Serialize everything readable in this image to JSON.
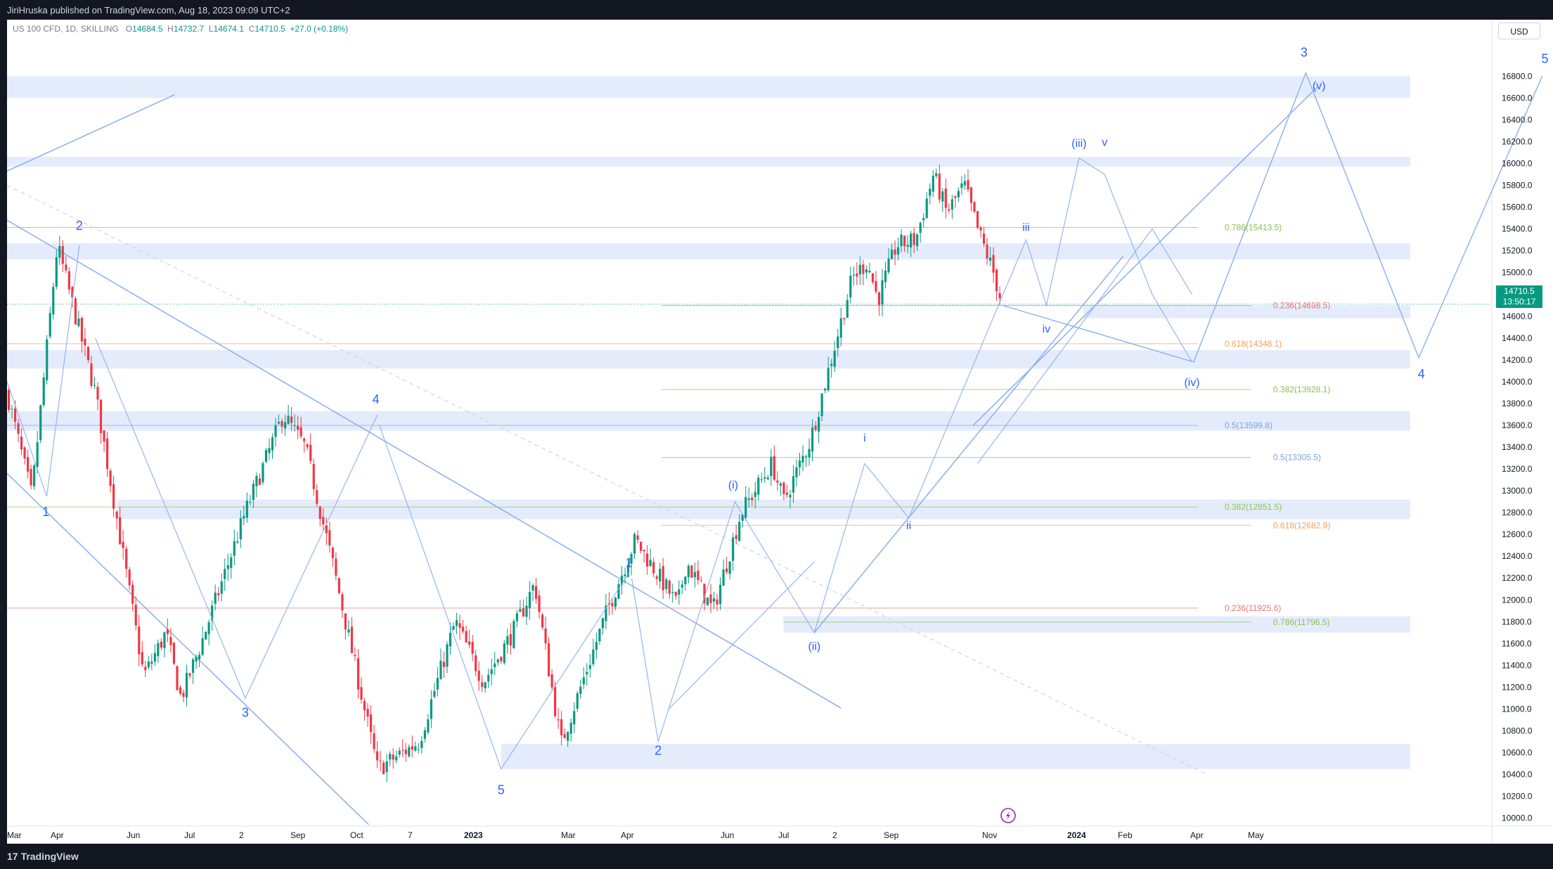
{
  "header": {
    "published": "JiriHruska published on TradingView.com, Aug 18, 2023 09:09 UTC+2"
  },
  "legend": {
    "symbol": "US 100 CFD, 1D, SKILLING",
    "open_label": "O",
    "open": "14684.5",
    "high_label": "H",
    "high": "14732.7",
    "low_label": "L",
    "low": "14674.1",
    "close_label": "C",
    "close": "14710.5",
    "change": "+27.0 (+0.18%)"
  },
  "currency": "USD",
  "price_badge": {
    "price": "14710.5",
    "countdown": "13:50:17"
  },
  "footer": {
    "brand": "TradingView",
    "logo": "17"
  },
  "colors": {
    "up": "#089981",
    "down": "#f23645",
    "zone": "#dbe6fb",
    "line": "#8aaef0",
    "label": "#2962ff",
    "fib_green": "#8bc34a",
    "fib_red": "#ef7272",
    "fib_orange": "#f5a05a",
    "fib_blue": "#7aa2e8"
  },
  "chart_data": {
    "type": "candlestick",
    "symbol": "US 100 CFD",
    "timeframe": "1D",
    "x_ticks": [
      "Mar",
      "Apr",
      "Jun",
      "Jul",
      "2",
      "Sep",
      "Oct",
      "7",
      "2023",
      "Mar",
      "Apr",
      "Jun",
      "Jul",
      "2",
      "Sep",
      "Nov",
      "2024",
      "Feb",
      "Apr",
      "May"
    ],
    "y_ticks": [
      "16800.0",
      "16600.0",
      "16400.0",
      "16200.0",
      "16000.0",
      "15800.0",
      "15600.0",
      "15400.0",
      "15200.0",
      "15000.0",
      "14800.0",
      "14600.0",
      "14400.0",
      "14200.0",
      "14000.0",
      "13800.0",
      "13600.0",
      "13400.0",
      "13200.0",
      "13000.0",
      "12800.0",
      "12600.0",
      "12400.0",
      "12200.0",
      "12000.0",
      "11800.0",
      "11600.0",
      "11400.0",
      "11200.0",
      "11000.0",
      "10800.0",
      "10600.0",
      "10400.0",
      "10200.0",
      "10000.0"
    ],
    "ylim": [
      9940,
      17150
    ],
    "last_price": 14710.5,
    "price_path": [
      [
        0.0,
        13900
      ],
      [
        0.028,
        12950
      ],
      [
        0.057,
        15250
      ],
      [
        0.1,
        13900
      ],
      [
        0.155,
        11300
      ],
      [
        0.18,
        11700
      ],
      [
        0.197,
        11100
      ],
      [
        0.22,
        11600
      ],
      [
        0.27,
        12800
      ],
      [
        0.313,
        13700
      ],
      [
        0.338,
        13400
      ],
      [
        0.37,
        12300
      ],
      [
        0.42,
        10450
      ],
      [
        0.467,
        10700
      ],
      [
        0.508,
        11800
      ],
      [
        0.54,
        11250
      ],
      [
        0.573,
        11700
      ],
      [
        0.598,
        12150
      ],
      [
        0.628,
        10680
      ],
      [
        0.68,
        11900
      ],
      [
        0.712,
        12550
      ],
      [
        0.76,
        11950
      ],
      [
        0.77,
        12350
      ],
      [
        0.8,
        11900
      ],
      [
        0.832,
        12800
      ],
      [
        0.867,
        13250
      ],
      [
        0.88,
        12900
      ],
      [
        0.91,
        13450
      ],
      [
        0.958,
        14950
      ],
      [
        0.975,
        15100
      ],
      [
        0.987,
        14750
      ],
      [
        1.008,
        15250
      ],
      [
        1.03,
        15300
      ],
      [
        1.05,
        15900
      ],
      [
        1.065,
        15550
      ],
      [
        1.085,
        15800
      ],
      [
        1.1,
        15400
      ],
      [
        1.118,
        15000
      ],
      [
        1.128,
        14700
      ]
    ],
    "zones": [
      {
        "y0": 16600,
        "y1": 16800,
        "x0": 0.0,
        "x1": 1.7
      },
      {
        "y0": 15970,
        "y1": 16060,
        "x0": 0.0,
        "x1": 1.7
      },
      {
        "y0": 15120,
        "y1": 15270,
        "x0": 0.0,
        "x1": 1.7
      },
      {
        "y0": 14580,
        "y1": 14700,
        "x0": 1.22,
        "x1": 1.7
      },
      {
        "y0": 14120,
        "y1": 14290,
        "x0": 0.0,
        "x1": 1.7
      },
      {
        "y0": 13550,
        "y1": 13730,
        "x0": 0.0,
        "x1": 1.7
      },
      {
        "y0": 12740,
        "y1": 12920,
        "x0": 0.125,
        "x1": 1.7
      },
      {
        "y0": 11700,
        "y1": 11850,
        "x0": 0.88,
        "x1": 1.7
      },
      {
        "y0": 10450,
        "y1": 10680,
        "x0": 0.56,
        "x1": 1.7
      }
    ],
    "fib_levels": [
      {
        "label": "0.786(15413.5)",
        "y": 15413.5,
        "x0": 0.0,
        "x1": 1.35,
        "label_x": 1.38,
        "color": "#8bc34a"
      },
      {
        "label": "0.236(14698.5)",
        "y": 14698.5,
        "x0": 0.742,
        "x1": 1.41,
        "label_x": 1.435,
        "color": "#ef7272"
      },
      {
        "label": "0.618(14348.1)",
        "y": 14348.1,
        "x0": 0.0,
        "x1": 1.35,
        "label_x": 1.38,
        "color": "#f5a05a"
      },
      {
        "label": "0.382(13928.1)",
        "y": 13928.1,
        "x0": 0.742,
        "x1": 1.41,
        "label_x": 1.435,
        "color": "#8bc34a"
      },
      {
        "label": "0.5(13599.8)",
        "y": 13599.8,
        "x0": 0.0,
        "x1": 1.35,
        "label_x": 1.38,
        "color": "#7aa2e8"
      },
      {
        "label": "0.5(13305.5)",
        "y": 13305.5,
        "x0": 0.742,
        "x1": 1.41,
        "label_x": 1.435,
        "color": "#7aa2e8"
      },
      {
        "label": "0.382(12851.5)",
        "y": 12851.5,
        "x0": 0.0,
        "x1": 1.35,
        "label_x": 1.38,
        "color": "#8bc34a"
      },
      {
        "label": "0.618(12682.9)",
        "y": 12682.9,
        "x0": 0.742,
        "x1": 1.41,
        "label_x": 1.435,
        "color": "#f5a05a"
      },
      {
        "label": "0.236(11925.6)",
        "y": 11925.6,
        "x0": 0.0,
        "x1": 1.35,
        "label_x": 1.38,
        "color": "#ef7272"
      },
      {
        "label": "0.786(11796.5)",
        "y": 11796.5,
        "x0": 0.88,
        "x1": 1.41,
        "label_x": 1.435,
        "color": "#8bc34a"
      }
    ],
    "wave_labels": [
      {
        "t": "1",
        "x": 0.044,
        "y": 12770,
        "size": 18
      },
      {
        "t": "2",
        "x": 0.082,
        "y": 15390,
        "size": 18
      },
      {
        "t": "3",
        "x": 0.27,
        "y": 10930,
        "size": 18
      },
      {
        "t": "4",
        "x": 0.418,
        "y": 13800,
        "size": 18
      },
      {
        "t": "5",
        "x": 0.56,
        "y": 10220,
        "size": 18
      },
      {
        "t": "1",
        "x": 0.705,
        "y": 12300,
        "size": 18
      },
      {
        "t": "2",
        "x": 0.738,
        "y": 10580,
        "size": 18
      },
      {
        "t": "(i)",
        "x": 0.823,
        "y": 13020,
        "size": 16
      },
      {
        "t": "(ii)",
        "x": 0.915,
        "y": 11540,
        "size": 16
      },
      {
        "t": "i",
        "x": 0.972,
        "y": 13450,
        "size": 16
      },
      {
        "t": "ii",
        "x": 1.022,
        "y": 12650,
        "size": 16
      },
      {
        "t": "iii",
        "x": 1.155,
        "y": 15380,
        "size": 16
      },
      {
        "t": "iv",
        "x": 1.178,
        "y": 14450,
        "size": 16
      },
      {
        "t": "(iii)",
        "x": 1.215,
        "y": 16150,
        "size": 16
      },
      {
        "t": "v",
        "x": 1.244,
        "y": 16160,
        "size": 16
      },
      {
        "t": "(iv)",
        "x": 1.343,
        "y": 13960,
        "size": 16
      },
      {
        "t": "(v)",
        "x": 1.487,
        "y": 16680,
        "size": 16
      },
      {
        "t": "3",
        "x": 1.47,
        "y": 16980,
        "size": 18
      },
      {
        "t": "4",
        "x": 1.603,
        "y": 14030,
        "size": 18
      },
      {
        "t": "5",
        "x": 1.743,
        "y": 16920,
        "size": 18
      }
    ],
    "projection": [
      [
        1.128,
        14700
      ],
      [
        1.345,
        14180
      ],
      [
        1.472,
        16830
      ],
      [
        1.6,
        14220
      ],
      [
        1.74,
        16800
      ]
    ],
    "trend_lines": [
      {
        "x0": 0.0,
        "y0": 15480,
        "x1": 0.945,
        "y1": 11010
      },
      {
        "x0": 0.0,
        "y0": 13160,
        "x1": 0.41,
        "y1": 9940
      },
      {
        "x0": 0.0,
        "y0": 15930,
        "x1": 0.19,
        "y1": 16630
      },
      {
        "x0": 1.095,
        "y0": 13600,
        "x1": 1.485,
        "y1": 16700
      },
      {
        "x0": 0.915,
        "y0": 11700,
        "x1": 1.265,
        "y1": 15150
      }
    ],
    "dashed_line": {
      "x0": 0.0,
      "y0": 15800,
      "x1": 1.36,
      "y1": 10400
    },
    "connector_lines": [
      [
        [
          0.0,
          14000
        ],
        [
          0.045,
          12950
        ],
        [
          0.082,
          15250
        ]
      ],
      [
        [
          0.1,
          14400
        ],
        [
          0.27,
          11100
        ],
        [
          0.42,
          13700
        ]
      ],
      [
        [
          0.422,
          13600
        ],
        [
          0.56,
          10450
        ],
        [
          0.705,
          12250
        ]
      ],
      [
        [
          0.708,
          12200
        ],
        [
          0.738,
          10700
        ],
        [
          0.825,
          12900
        ],
        [
          0.915,
          11700
        ],
        [
          0.972,
          13250
        ],
        [
          1.022,
          12750
        ],
        [
          1.155,
          15300
        ],
        [
          1.178,
          14700
        ],
        [
          1.215,
          16050
        ],
        [
          1.244,
          15900
        ],
        [
          1.298,
          14800
        ],
        [
          1.343,
          14180
        ]
      ],
      [
        [
          1.1,
          13250
        ],
        [
          1.298,
          15400
        ],
        [
          1.343,
          14800
        ]
      ],
      [
        [
          0.75,
          11000
        ],
        [
          0.915,
          12350
        ]
      ]
    ]
  }
}
